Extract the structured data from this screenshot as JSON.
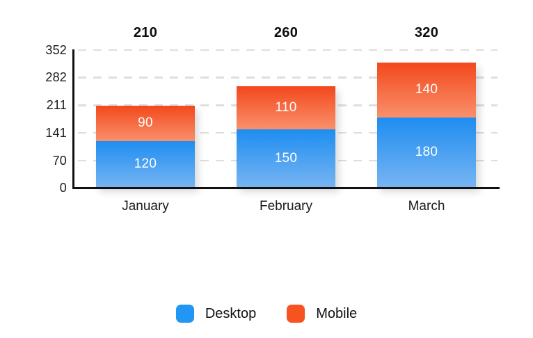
{
  "chart_data": {
    "type": "bar",
    "stacked": true,
    "title": "",
    "xlabel": "",
    "ylabel": "",
    "categories": [
      "January",
      "February",
      "March"
    ],
    "series": [
      {
        "name": "Desktop",
        "values": [
          120,
          150,
          180
        ],
        "color_top": "#1e8df0",
        "color_bottom": "#78b5f3",
        "legend_color": "#2196f3"
      },
      {
        "name": "Mobile",
        "values": [
          90,
          110,
          140
        ],
        "color_top": "#f3481c",
        "color_bottom": "#f9906b",
        "legend_color": "#f65321"
      }
    ],
    "totals": [
      210,
      260,
      320
    ],
    "y_ticks": [
      352,
      282,
      211,
      141,
      70,
      0
    ],
    "ylim": [
      0,
      352
    ],
    "grid": "dashed-horizontal",
    "gridline_color": "#dedede",
    "axis_color": "#111111",
    "legend_position": "bottom"
  }
}
